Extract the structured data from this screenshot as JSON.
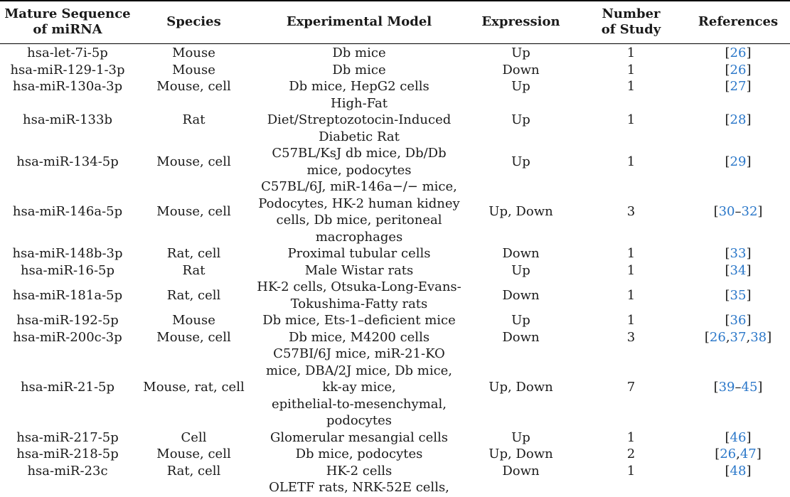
{
  "table": {
    "headers": [
      "Mature Sequence of miRNA",
      "Species",
      "Experimental Model",
      "Expression",
      "Number of Study",
      "References"
    ],
    "header_lines": [
      [
        "Mature Sequence",
        "of miRNA"
      ],
      [
        "Species"
      ],
      [
        "Experimental Model"
      ],
      [
        "Expression"
      ],
      [
        "Number",
        "of Study"
      ],
      [
        "References"
      ]
    ],
    "rows": [
      {
        "mirna": "hsa-let-7i-5p",
        "species": "Mouse",
        "model": [
          "Db mice"
        ],
        "expression": "Up",
        "n": "1",
        "refs": [
          "26"
        ],
        "sep": []
      },
      {
        "mirna": "hsa-miR-129-1-3p",
        "species": "Mouse",
        "model": [
          "Db mice"
        ],
        "expression": "Down",
        "n": "1",
        "refs": [
          "26"
        ],
        "sep": []
      },
      {
        "mirna": "hsa-miR-130a-3p",
        "species": "Mouse, cell",
        "model": [
          "Db mice, HepG2 cells"
        ],
        "expression": "Up",
        "n": "1",
        "refs": [
          "27"
        ],
        "sep": []
      },
      {
        "mirna": "hsa-miR-133b",
        "species": "Rat",
        "model": [
          "High-Fat",
          "Diet/Streptozotocin-Induced",
          "Diabetic Rat"
        ],
        "expression": "Up",
        "n": "1",
        "refs": [
          "28"
        ],
        "sep": []
      },
      {
        "mirna": "hsa-miR-134-5p",
        "species": "Mouse, cell",
        "model": [
          "C57BL/KsJ db mice, Db/Db",
          "mice, podocytes"
        ],
        "expression": "Up",
        "n": "1",
        "refs": [
          "29"
        ],
        "sep": []
      },
      {
        "mirna": "hsa-miR-146a-5p",
        "species": "Mouse, cell",
        "model": [
          "C57BL/6J, miR-146a−/− mice,",
          "Podocytes, HK-2 human kidney",
          "cells, Db mice, peritoneal",
          "macrophages"
        ],
        "expression": "Up, Down",
        "n": "3",
        "refs": [
          "30",
          "32"
        ],
        "sep": [
          "–"
        ]
      },
      {
        "mirna": "hsa-miR-148b-3p",
        "species": "Rat, cell",
        "model": [
          "Proximal tubular cells"
        ],
        "expression": "Down",
        "n": "1",
        "refs": [
          "33"
        ],
        "sep": []
      },
      {
        "mirna": "hsa-miR-16-5p",
        "species": "Rat",
        "model": [
          "Male Wistar rats"
        ],
        "expression": "Up",
        "n": "1",
        "refs": [
          "34"
        ],
        "sep": []
      },
      {
        "mirna": "hsa-miR-181a-5p",
        "species": "Rat, cell",
        "model": [
          "HK-2 cells, Otsuka-Long-Evans-",
          "Tokushima-Fatty rats"
        ],
        "expression": "Down",
        "n": "1",
        "refs": [
          "35"
        ],
        "sep": []
      },
      {
        "mirna": "hsa-miR-192-5p",
        "species": "Mouse",
        "model": [
          "Db mice, Ets-1–deficient mice"
        ],
        "expression": "Up",
        "n": "1",
        "refs": [
          "36"
        ],
        "sep": []
      },
      {
        "mirna": "hsa-miR-200c-3p",
        "species": "Mouse, cell",
        "model": [
          "Db mice, M4200 cells"
        ],
        "expression": "Down",
        "n": "3",
        "refs": [
          "26",
          "37",
          "38"
        ],
        "sep": [
          ",",
          ","
        ]
      },
      {
        "mirna": "hsa-miR-21-5p",
        "species": "Mouse, rat, cell",
        "model": [
          "C57BI/6J mice, miR-21-KO",
          "mice, DBA/2J mice, Db mice,",
          "kk-ay mice,",
          "epithelial-to-mesenchymal,",
          "podocytes"
        ],
        "expression": "Up, Down",
        "n": "7",
        "refs": [
          "39",
          "45"
        ],
        "sep": [
          "–"
        ]
      },
      {
        "mirna": "hsa-miR-217-5p",
        "species": "Cell",
        "model": [
          "Glomerular mesangial cells"
        ],
        "expression": "Up",
        "n": "1",
        "refs": [
          "46"
        ],
        "sep": []
      },
      {
        "mirna": "hsa-miR-218-5p",
        "species": "Mouse, cell",
        "model": [
          "Db mice, podocytes"
        ],
        "expression": "Up, Down",
        "n": "2",
        "refs": [
          "26",
          "47"
        ],
        "sep": [
          ","
        ]
      },
      {
        "mirna": "hsa-miR-23c",
        "species": "Rat, cell",
        "model": [
          "HK-2 cells"
        ],
        "expression": "Down",
        "n": "1",
        "refs": [
          "48"
        ],
        "sep": []
      },
      {
        "mirna": "",
        "species": "",
        "model": [
          "OLETF rats, NRK-52E cells,"
        ],
        "expression": "",
        "n": "",
        "refs": [],
        "sep": []
      }
    ]
  }
}
